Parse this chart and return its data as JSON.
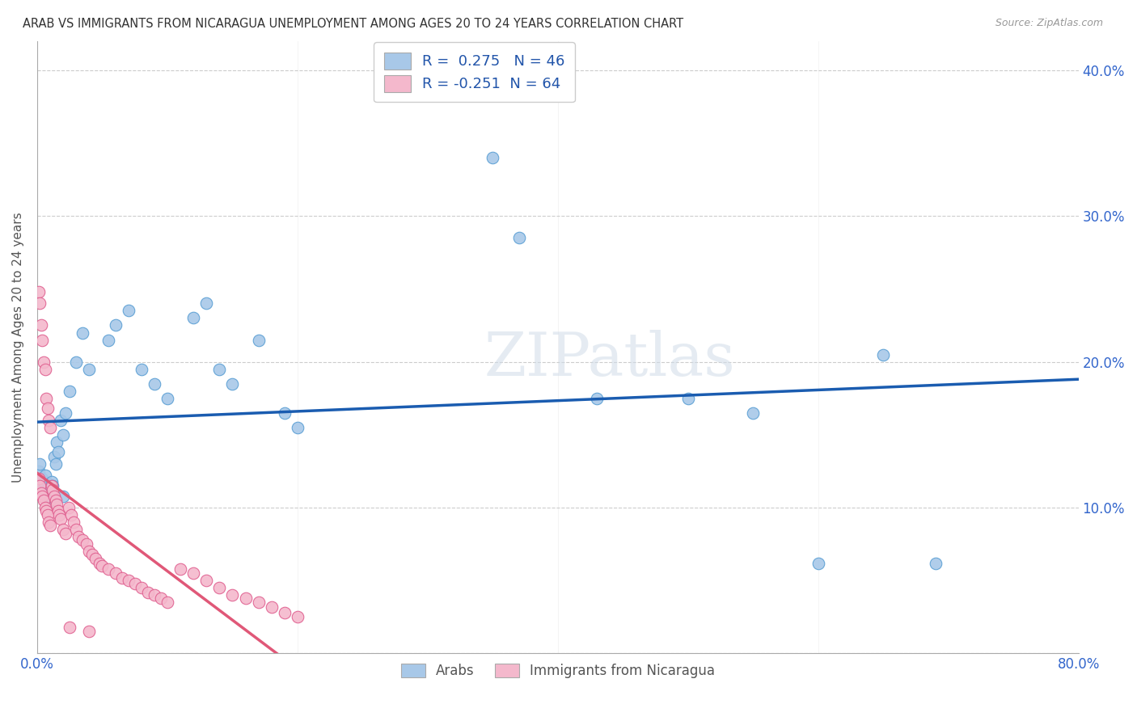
{
  "title": "ARAB VS IMMIGRANTS FROM NICARAGUA UNEMPLOYMENT AMONG AGES 20 TO 24 YEARS CORRELATION CHART",
  "source": "Source: ZipAtlas.com",
  "ylabel": "Unemployment Among Ages 20 to 24 years",
  "xlim": [
    0.0,
    0.8
  ],
  "ylim": [
    0.0,
    0.42
  ],
  "xticks": [
    0.0,
    0.1,
    0.2,
    0.3,
    0.4,
    0.5,
    0.6,
    0.7,
    0.8
  ],
  "xticklabels": [
    "0.0%",
    "",
    "",
    "",
    "",
    "",
    "",
    "",
    "80.0%"
  ],
  "yticks": [
    0.0,
    0.1,
    0.2,
    0.3,
    0.4
  ],
  "yticklabels": [
    "",
    "10.0%",
    "20.0%",
    "30.0%",
    "40.0%"
  ],
  "arab_color": "#a8c8e8",
  "arab_edge_color": "#5a9fd4",
  "nic_color": "#f4b8cc",
  "nic_edge_color": "#e06090",
  "trend_arab_color": "#1a5cb0",
  "trend_nic_color": "#e05878",
  "R_arab": 0.275,
  "N_arab": 46,
  "R_nic": -0.251,
  "N_nic": 64,
  "legend_labels": [
    "Arabs",
    "Immigrants from Nicaragua"
  ],
  "arab_points_x": [
    0.001,
    0.002,
    0.003,
    0.004,
    0.005,
    0.006,
    0.007,
    0.008,
    0.009,
    0.01,
    0.011,
    0.012,
    0.013,
    0.014,
    0.015,
    0.016,
    0.018,
    0.02,
    0.022,
    0.025,
    0.03,
    0.035,
    0.04,
    0.055,
    0.06,
    0.07,
    0.08,
    0.09,
    0.1,
    0.12,
    0.13,
    0.14,
    0.15,
    0.17,
    0.19,
    0.2,
    0.35,
    0.37,
    0.43,
    0.5,
    0.55,
    0.6,
    0.65,
    0.69,
    0.01,
    0.02
  ],
  "arab_points_y": [
    0.125,
    0.13,
    0.115,
    0.12,
    0.118,
    0.122,
    0.108,
    0.112,
    0.116,
    0.105,
    0.118,
    0.115,
    0.135,
    0.13,
    0.145,
    0.138,
    0.16,
    0.15,
    0.165,
    0.18,
    0.2,
    0.22,
    0.195,
    0.215,
    0.225,
    0.235,
    0.195,
    0.185,
    0.175,
    0.23,
    0.24,
    0.195,
    0.185,
    0.215,
    0.165,
    0.155,
    0.34,
    0.285,
    0.175,
    0.175,
    0.165,
    0.062,
    0.205,
    0.062,
    0.108,
    0.108
  ],
  "nic_points_x": [
    0.001,
    0.002,
    0.003,
    0.004,
    0.005,
    0.006,
    0.007,
    0.008,
    0.009,
    0.01,
    0.001,
    0.002,
    0.003,
    0.004,
    0.005,
    0.006,
    0.007,
    0.008,
    0.009,
    0.01,
    0.011,
    0.012,
    0.013,
    0.014,
    0.015,
    0.016,
    0.017,
    0.018,
    0.02,
    0.022,
    0.024,
    0.026,
    0.028,
    0.03,
    0.032,
    0.035,
    0.038,
    0.04,
    0.042,
    0.045,
    0.048,
    0.05,
    0.055,
    0.06,
    0.065,
    0.07,
    0.075,
    0.08,
    0.085,
    0.09,
    0.095,
    0.1,
    0.11,
    0.12,
    0.13,
    0.14,
    0.15,
    0.16,
    0.17,
    0.18,
    0.19,
    0.2,
    0.025,
    0.04
  ],
  "nic_points_y": [
    0.248,
    0.24,
    0.225,
    0.215,
    0.2,
    0.195,
    0.175,
    0.168,
    0.16,
    0.155,
    0.12,
    0.115,
    0.11,
    0.108,
    0.105,
    0.1,
    0.098,
    0.095,
    0.09,
    0.088,
    0.115,
    0.112,
    0.108,
    0.105,
    0.102,
    0.098,
    0.095,
    0.092,
    0.085,
    0.082,
    0.1,
    0.095,
    0.09,
    0.085,
    0.08,
    0.078,
    0.075,
    0.07,
    0.068,
    0.065,
    0.062,
    0.06,
    0.058,
    0.055,
    0.052,
    0.05,
    0.048,
    0.045,
    0.042,
    0.04,
    0.038,
    0.035,
    0.058,
    0.055,
    0.05,
    0.045,
    0.04,
    0.038,
    0.035,
    0.032,
    0.028,
    0.025,
    0.018,
    0.015
  ]
}
